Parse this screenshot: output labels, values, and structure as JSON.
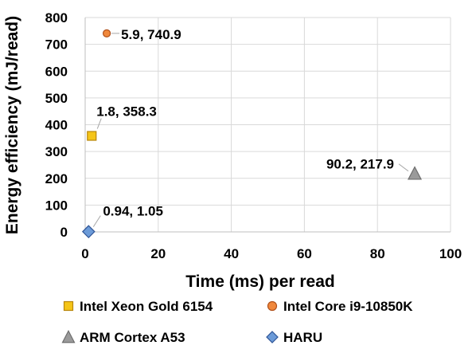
{
  "chart_data": {
    "type": "scatter",
    "xlabel": "Time (ms) per read",
    "ylabel": "Energy efficiency (mJ/read)",
    "xlim": [
      0,
      100
    ],
    "ylim": [
      0,
      800
    ],
    "x_ticks": [
      0,
      20,
      40,
      60,
      80,
      100
    ],
    "y_ticks": [
      0,
      100,
      200,
      300,
      400,
      500,
      600,
      700,
      800
    ],
    "grid": true,
    "legend_position": "bottom",
    "series": [
      {
        "name": "Intel Xeon Gold 6154",
        "marker": "square",
        "color": "#F5C518",
        "stroke": "#B8860B",
        "points": [
          {
            "x": 1.8,
            "y": 358.3,
            "label": "1.8, 358.3"
          }
        ]
      },
      {
        "name": "Intel Core i9-10850K",
        "marker": "circle",
        "color": "#F0883C",
        "stroke": "#B0501A",
        "points": [
          {
            "x": 5.9,
            "y": 740.9,
            "label": "5.9, 740.9"
          }
        ]
      },
      {
        "name": "ARM Cortex A53",
        "marker": "triangle",
        "color": "#9A9A9A",
        "stroke": "#6E6E6E",
        "points": [
          {
            "x": 90.2,
            "y": 217.9,
            "label": "90.2, 217.9"
          }
        ]
      },
      {
        "name": "HARU",
        "marker": "diamond",
        "color": "#6C9BD8",
        "stroke": "#2F5597",
        "points": [
          {
            "x": 0.94,
            "y": 1.05,
            "label": "0.94, 1.05"
          }
        ]
      }
    ]
  }
}
